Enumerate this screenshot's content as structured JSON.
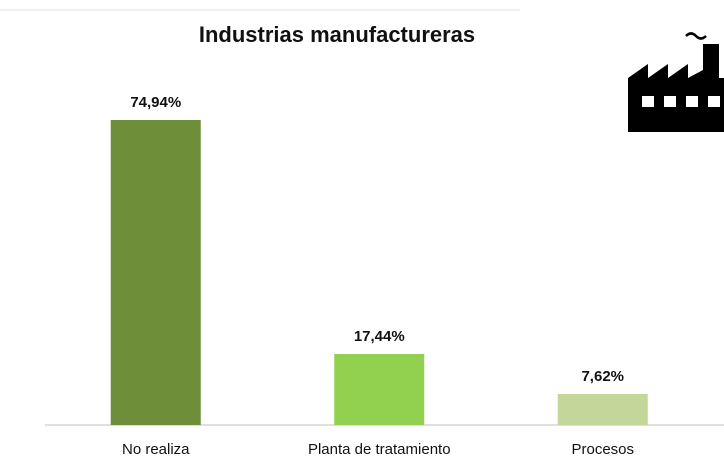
{
  "chart_data": {
    "type": "bar",
    "title": "Industrias manufactureras",
    "categories": [
      "No realiza",
      "Planta de tratamiento",
      "Procesos"
    ],
    "values": [
      74.94,
      17.44,
      7.62
    ],
    "value_labels": [
      "74,94%",
      "17,44%",
      "7,62%"
    ],
    "colors": [
      "#6f8e3a",
      "#92d050",
      "#c4d79b"
    ]
  }
}
